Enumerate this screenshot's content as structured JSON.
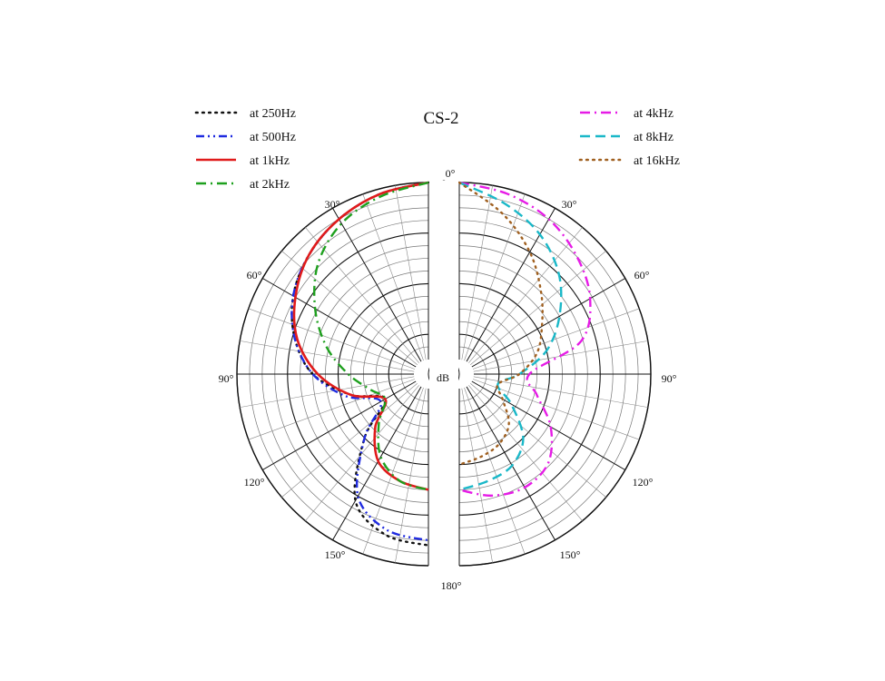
{
  "chart_data": {
    "type": "polar",
    "title": "CS-2",
    "radial_unit": "dB",
    "radial_range": [
      -35,
      0
    ],
    "radial_ticks": [
      "0",
      "-10",
      "-20",
      "-30"
    ],
    "angle_labels": [
      "0°",
      "30°",
      "60°",
      "90°",
      "120°",
      "150°",
      "180°"
    ],
    "legend_left": [
      "at 250Hz",
      "at 500Hz",
      "at 1kHz",
      "at 2kHz"
    ],
    "legend_right": [
      "at 4kHz",
      "at 8kHz",
      "at 16kHz"
    ],
    "angles_deg": [
      0,
      15,
      30,
      45,
      60,
      75,
      90,
      105,
      120,
      135,
      150,
      165,
      180
    ],
    "series": [
      {
        "name": "at 250Hz",
        "side": "left",
        "color": "#111111",
        "dash": "dotted",
        "values": [
          0,
          -1,
          -2.5,
          -4.5,
          -7,
          -10.5,
          -15,
          -22,
          -28,
          -20,
          -9,
          -5,
          -4
        ]
      },
      {
        "name": "at 500Hz",
        "side": "left",
        "color": "#1f2be0",
        "dash": "dashdotdot",
        "values": [
          0,
          -1,
          -2.5,
          -4.5,
          -7,
          -10.5,
          -15,
          -21,
          -27,
          -20,
          -10,
          -6,
          -5
        ]
      },
      {
        "name": "at 1kHz",
        "side": "left",
        "color": "#e01b1b",
        "dash": "solid",
        "values": [
          0,
          -1,
          -2.5,
          -4.5,
          -7.5,
          -11,
          -16,
          -22,
          -28,
          -23,
          -18,
          -16,
          -15
        ]
      },
      {
        "name": "at 2kHz",
        "side": "left",
        "color": "#1ea01e",
        "dash": "dashdot",
        "values": [
          0,
          -1.5,
          -3.5,
          -7,
          -12,
          -17,
          -22,
          -26,
          -28,
          -24,
          -19,
          -16,
          -15
        ]
      },
      {
        "name": "at 4kHz",
        "side": "right",
        "color": "#e61be6",
        "dash": "dashdot",
        "values": [
          0,
          -1,
          -2.5,
          -5,
          -8,
          -13,
          -24,
          -22,
          -17,
          -13,
          -12,
          -13,
          -15
        ]
      },
      {
        "name": "at 8kHz",
        "side": "right",
        "color": "#1ab8c8",
        "dash": "dashed",
        "values": [
          0,
          -3,
          -6,
          -10,
          -15,
          -20,
          -26,
          -30,
          -26,
          -20,
          -17,
          -16,
          -15
        ]
      },
      {
        "name": "at 16kHz",
        "side": "right",
        "color": "#a06020",
        "dash": "dotted",
        "values": [
          0,
          -5,
          -10,
          -15,
          -19,
          -22,
          -26,
          -30,
          -28,
          -24,
          -22,
          -21,
          -20
        ]
      }
    ]
  }
}
